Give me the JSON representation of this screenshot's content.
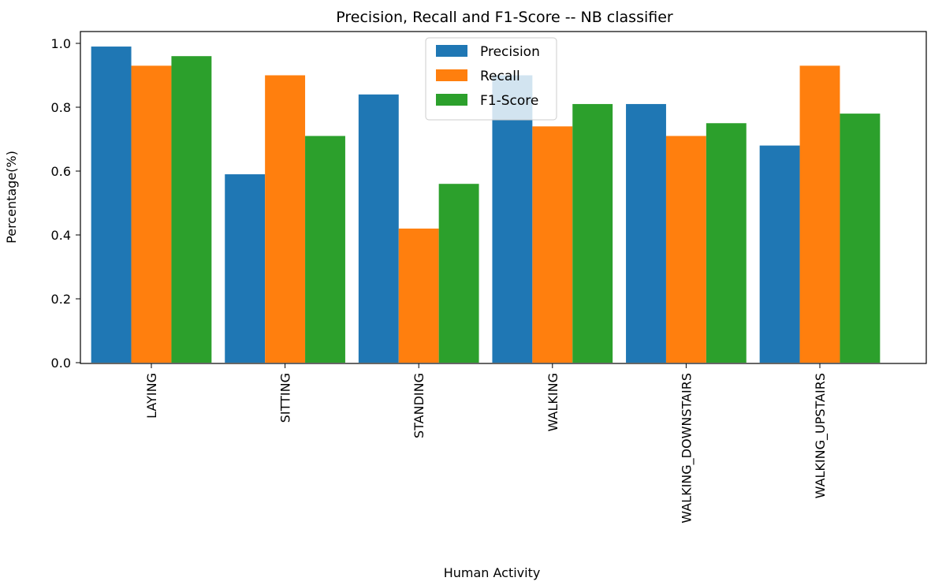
{
  "chart_data": {
    "type": "bar",
    "title": "Precision, Recall and F1-Score -- NB classifier",
    "xlabel": "Human Activity",
    "ylabel": "Percentage(%)",
    "ylim": [
      0,
      1.05
    ],
    "yticks": [
      "0.0",
      "0.2",
      "0.4",
      "0.6",
      "0.8",
      "1.0"
    ],
    "categories": [
      "LAYING",
      "SITTING",
      "STANDING",
      "WALKING",
      "WALKING_DOWNSTAIRS",
      "WALKING_UPSTAIRS"
    ],
    "series": [
      {
        "name": "Precision",
        "color": "#1f77b4",
        "values": [
          0.99,
          0.59,
          0.84,
          0.9,
          0.81,
          0.68
        ]
      },
      {
        "name": "Recall",
        "color": "#ff7f0e",
        "values": [
          0.93,
          0.9,
          0.42,
          0.74,
          0.71,
          0.93
        ]
      },
      {
        "name": "F1-Score",
        "color": "#2ca02c",
        "values": [
          0.96,
          0.71,
          0.56,
          0.81,
          0.75,
          0.78
        ]
      }
    ],
    "legend": "top-center",
    "grid": false
  }
}
